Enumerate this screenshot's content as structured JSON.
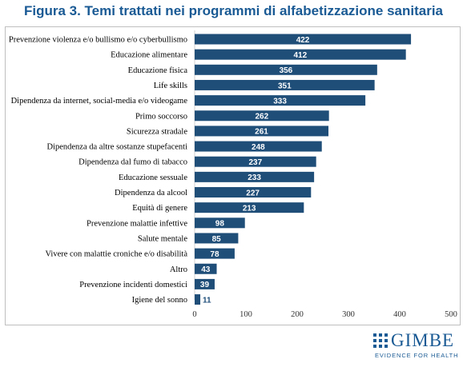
{
  "title": "Figura 3. Temi trattati nei programmi di alfabetizzazione sanitaria",
  "logo": {
    "name": "GIMBE",
    "tagline": "EVIDENCE FOR HEALTH"
  },
  "colors": {
    "bar": "#1f4e79",
    "title": "#1a5a94",
    "bar_label": "#ffffff"
  },
  "chart_data": {
    "type": "bar",
    "orientation": "horizontal",
    "categories": [
      "Prevenzione violenza e/o bullismo e/o cyberbullismo",
      "Educazione alimentare",
      "Educazione fisica",
      "Life skills",
      "Dipendenza da internet, social-media e/o videogame",
      "Primo soccorso",
      "Sicurezza stradale",
      "Dipendenza da altre sostanze stupefacenti",
      "Dipendenza dal fumo di tabacco",
      "Educazione sessuale",
      "Dipendenza da alcool",
      "Equità di genere",
      "Prevenzione malattie infettive",
      "Salute mentale",
      "Vivere con malattie croniche e/o disabilità",
      "Altro",
      "Prevenzione incidenti domestici",
      "Igiene del sonno"
    ],
    "values": [
      422,
      412,
      356,
      351,
      333,
      262,
      261,
      248,
      237,
      233,
      227,
      213,
      98,
      85,
      78,
      43,
      39,
      11
    ],
    "xlim": [
      0,
      500
    ],
    "xticks": [
      0,
      100,
      200,
      300,
      400,
      500
    ],
    "grid": false,
    "legend": "none",
    "data_labels": true
  }
}
